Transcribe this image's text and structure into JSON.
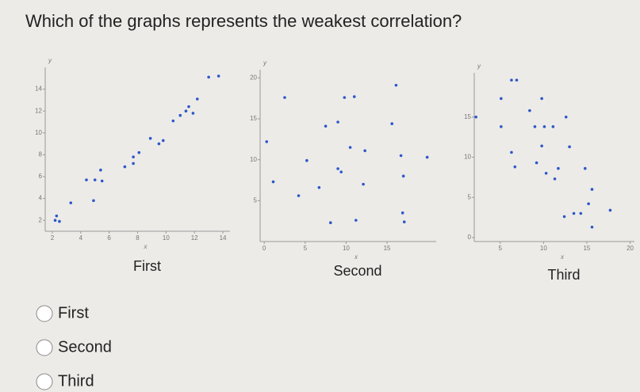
{
  "question": "Which of the graphs represents the weakest correlation?",
  "options": [
    "First",
    "Second",
    "Third"
  ],
  "chart_data": [
    {
      "type": "scatter",
      "title": "First",
      "x_label": "x",
      "y_label": "y",
      "xlim": [
        1.5,
        14.5
      ],
      "ylim": [
        1,
        16
      ],
      "xticks": [
        2,
        4,
        6,
        8,
        10,
        12,
        14
      ],
      "yticks": [
        2,
        4,
        6,
        8,
        10,
        12,
        14
      ],
      "color": "#2d57c9",
      "x": [
        2.2,
        2.3,
        2.5,
        3.3,
        4.4,
        4.9,
        5,
        5.4,
        5.5,
        7.1,
        7.7,
        7.7,
        8.1,
        8.9,
        9.5,
        9.8,
        10.5,
        11,
        11.4,
        11.6,
        12.2,
        11.9,
        13,
        13.7
      ],
      "y": [
        2,
        2.4,
        1.9,
        3.6,
        5.7,
        3.8,
        5.7,
        6.6,
        5.6,
        6.9,
        7.2,
        7.8,
        8.2,
        9.5,
        9,
        9.3,
        11.1,
        11.6,
        12,
        12.4,
        13.1,
        11.8,
        15.1,
        15.2
      ]
    },
    {
      "type": "scatter",
      "title": "Second",
      "x_label": "x",
      "y_label": "y",
      "xlim": [
        -0.5,
        21
      ],
      "ylim": [
        0,
        21
      ],
      "xticks": [
        0,
        5,
        10,
        15
      ],
      "yticks": [
        5,
        10,
        15,
        20
      ],
      "color": "#2d57c9",
      "x": [
        0.3,
        1.1,
        2.5,
        4.2,
        5.2,
        6.7,
        7.5,
        9,
        9,
        9.4,
        9.8,
        10.5,
        11,
        8.1,
        11.2,
        12.1,
        12.3,
        15.6,
        16.1,
        16.7,
        17,
        16.9,
        17.1,
        19.9
      ],
      "y": [
        12.2,
        7.3,
        17.6,
        5.6,
        9.9,
        6.6,
        14.1,
        14.6,
        8.9,
        8.5,
        17.6,
        11.5,
        17.7,
        2.3,
        2.6,
        7,
        11.1,
        14.4,
        19.1,
        10.5,
        8,
        3.5,
        2.4,
        10.3
      ]
    },
    {
      "type": "scatter",
      "title": "Third",
      "x_label": "x",
      "y_label": "y",
      "xlim": [
        2,
        20.5
      ],
      "ylim": [
        -0.5,
        20.5
      ],
      "xticks": [
        5,
        10,
        15,
        20
      ],
      "yticks": [
        0,
        5,
        10,
        15
      ],
      "color": "#2d57c9",
      "x": [
        2.2,
        5.1,
        5.1,
        6.3,
        6.9,
        6.3,
        6.7,
        8.4,
        9,
        10.1,
        11.1,
        9.2,
        9.8,
        9.8,
        10.3,
        11.3,
        11.7,
        12.6,
        13,
        12.4,
        13.5,
        14.3,
        14.8,
        15.2,
        15.6,
        15.6,
        17.7
      ],
      "y": [
        15,
        17.3,
        13.8,
        19.6,
        19.6,
        10.6,
        8.8,
        15.8,
        13.8,
        13.8,
        13.8,
        9.3,
        17.3,
        11.4,
        8,
        7.3,
        8.6,
        15,
        11.3,
        2.6,
        3,
        3,
        8.6,
        4.2,
        6,
        1.3,
        3.4
      ]
    }
  ]
}
